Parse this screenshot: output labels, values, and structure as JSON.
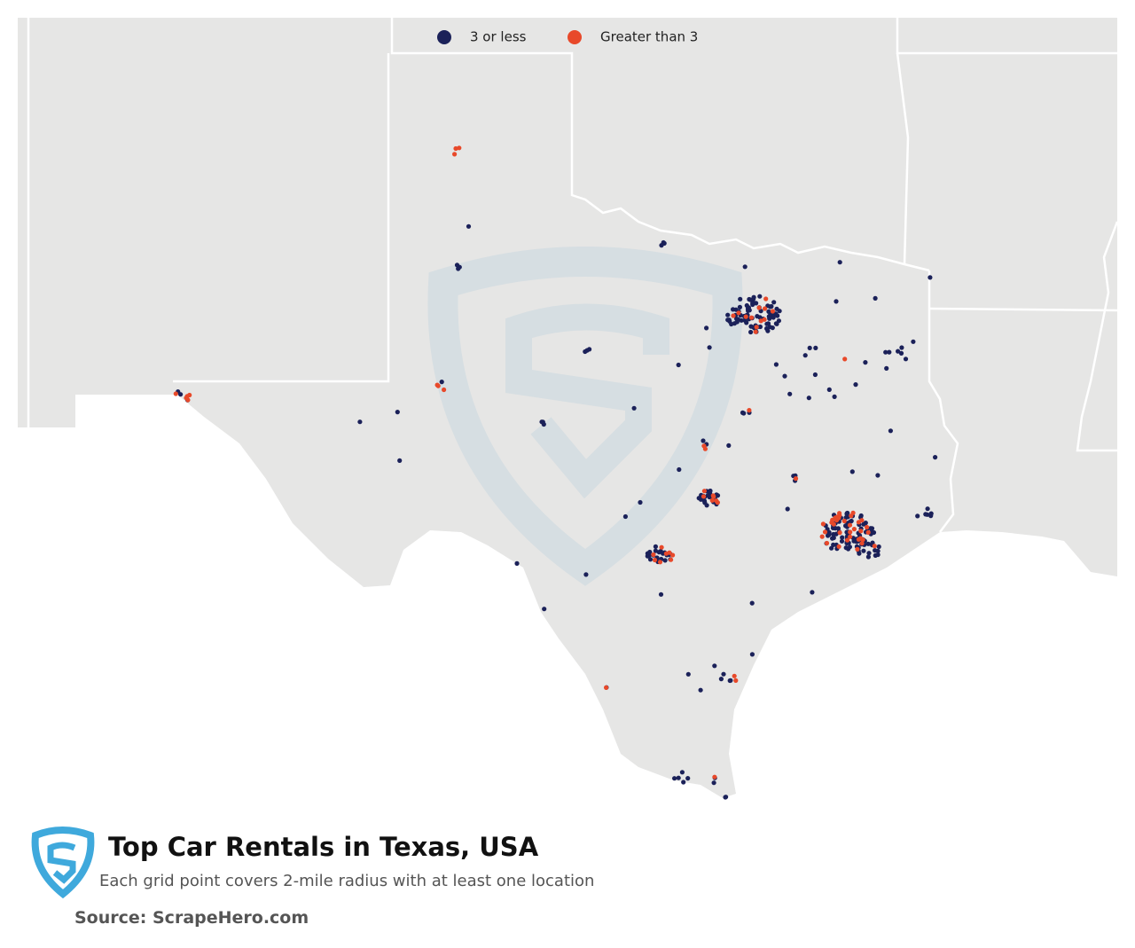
{
  "legend": [
    {
      "label": "3 or less",
      "color": "#1b2159"
    },
    {
      "label": "Greater than 3",
      "color": "#e8492a"
    }
  ],
  "title": "Top Car Rentals in Texas, USA",
  "subtitle": "Each grid point covers 2-mile radius with at least one location",
  "source": "Source: ScrapeHero.com"
}
